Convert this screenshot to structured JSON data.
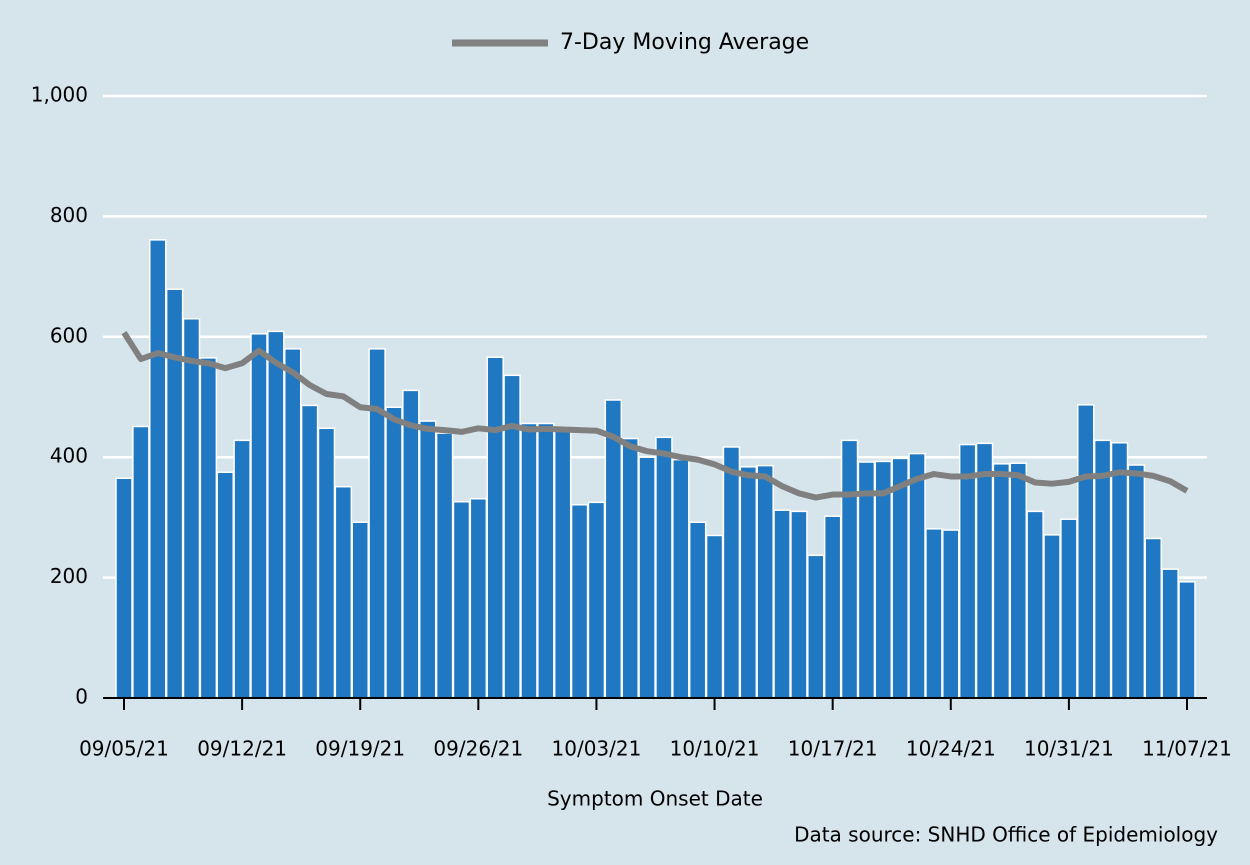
{
  "chart_data": {
    "type": "bar",
    "x_label": "Symptom Onset Date",
    "source": "Data source: SNHD Office of Epidemiology",
    "categories": [
      "09/05/21",
      null,
      null,
      null,
      null,
      null,
      null,
      "09/12/21",
      null,
      null,
      null,
      null,
      null,
      null,
      "09/19/21",
      null,
      null,
      null,
      null,
      null,
      null,
      "09/26/21",
      null,
      null,
      null,
      null,
      null,
      null,
      "10/03/21",
      null,
      null,
      null,
      null,
      null,
      null,
      "10/10/21",
      null,
      null,
      null,
      null,
      null,
      null,
      "10/17/21",
      null,
      null,
      null,
      null,
      null,
      null,
      "10/24/21",
      null,
      null,
      null,
      null,
      null,
      null,
      "10/31/21",
      null,
      null,
      null,
      null,
      null,
      null,
      "11/07/21"
    ],
    "values": [
      365,
      451,
      761,
      679,
      630,
      565,
      375,
      428,
      605,
      609,
      580,
      486,
      448,
      351,
      292,
      580,
      483,
      511,
      460,
      440,
      326,
      331,
      566,
      536,
      456,
      456,
      448,
      321,
      325,
      495,
      431,
      400,
      433,
      396,
      292,
      270,
      417,
      384,
      386,
      312,
      310,
      237,
      302,
      428,
      392,
      393,
      398,
      406,
      281,
      279,
      421,
      423,
      389,
      390,
      310,
      271,
      297,
      487,
      428,
      424,
      387,
      265,
      214,
      193
    ],
    "color": "#1f78c1",
    "series": [
      {
        "name": "7-Day Moving Average",
        "color": "#808080",
        "values": [
          607,
          563,
          573,
          566,
          560,
          556,
          548,
          556,
          577,
          557,
          541,
          520,
          505,
          501,
          483,
          480,
          463,
          453,
          447,
          445,
          442,
          448,
          445,
          452,
          446,
          447,
          446,
          445,
          444,
          434,
          418,
          410,
          406,
          400,
          396,
          388,
          376,
          370,
          368,
          352,
          340,
          333,
          338,
          338,
          340,
          340,
          352,
          364,
          372,
          368,
          368,
          372,
          372,
          370,
          358,
          356,
          359,
          368,
          369,
          375,
          373,
          369,
          360,
          344
        ]
      }
    ],
    "ylim": [
      0,
      1000
    ],
    "yticks": [
      0,
      200,
      400,
      600,
      800,
      {
        "value": 1000,
        "label": "1,000"
      }
    ],
    "grid": true
  }
}
